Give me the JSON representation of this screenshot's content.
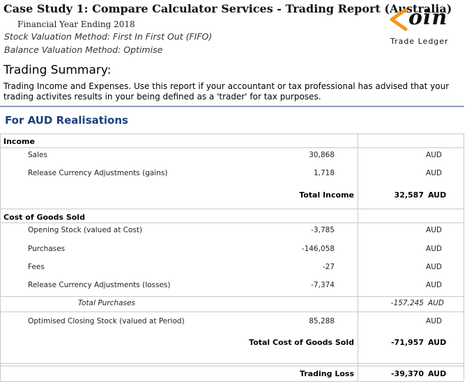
{
  "header": {
    "title": "Case Study 1: Compare Calculator Services - Trading Report (Australia)",
    "financial_year": "Financial Year Ending 2018",
    "stock_method": "Stock Valuation Method: First In First Out (FIFO)",
    "balance_method": "Balance Valuation Method: Optimise"
  },
  "logo": {
    "word": "oin",
    "subtitle": "Trade Ledger",
    "accent_color": "#f7941d"
  },
  "summary": {
    "title": "Trading Summary:",
    "description": "Trading Income and Expenses. Use this report if your accountant or tax professional has advised that your trading activites results in your being defined as a 'trader' for tax purposes."
  },
  "section": {
    "title": "For AUD Realisations"
  },
  "income": {
    "heading": "Income",
    "rows": [
      {
        "label": "Sales",
        "value": "30,868",
        "currency": "AUD"
      },
      {
        "label": "Release Currency Adjustments (gains)",
        "value": "1,718",
        "currency": "AUD"
      }
    ],
    "total": {
      "label": "Total Income",
      "value": "32,587",
      "currency": "AUD"
    }
  },
  "cogs": {
    "heading": "Cost of Goods Sold",
    "rows": [
      {
        "label": "Opening Stock (valued at Cost)",
        "value": "-3,785",
        "currency": "AUD"
      },
      {
        "label": "Purchases",
        "value": "-146,058",
        "currency": "AUD"
      },
      {
        "label": "Fees",
        "value": "-27",
        "currency": "AUD"
      },
      {
        "label": "Release Currency Adjustments (losses)",
        "value": "-7,374",
        "currency": "AUD"
      }
    ],
    "subtotal": {
      "label": "Total Purchases",
      "value": "-157,245",
      "currency": "AUD"
    },
    "closing": {
      "label": "Optimised Closing Stock (valued at Period)",
      "value": "85,288",
      "currency": "AUD"
    },
    "total": {
      "label": "Total Cost of Goods Sold",
      "value": "-71,957",
      "currency": "AUD"
    }
  },
  "trading": {
    "label": "Trading Loss",
    "value": "-39,370",
    "currency": "AUD"
  }
}
